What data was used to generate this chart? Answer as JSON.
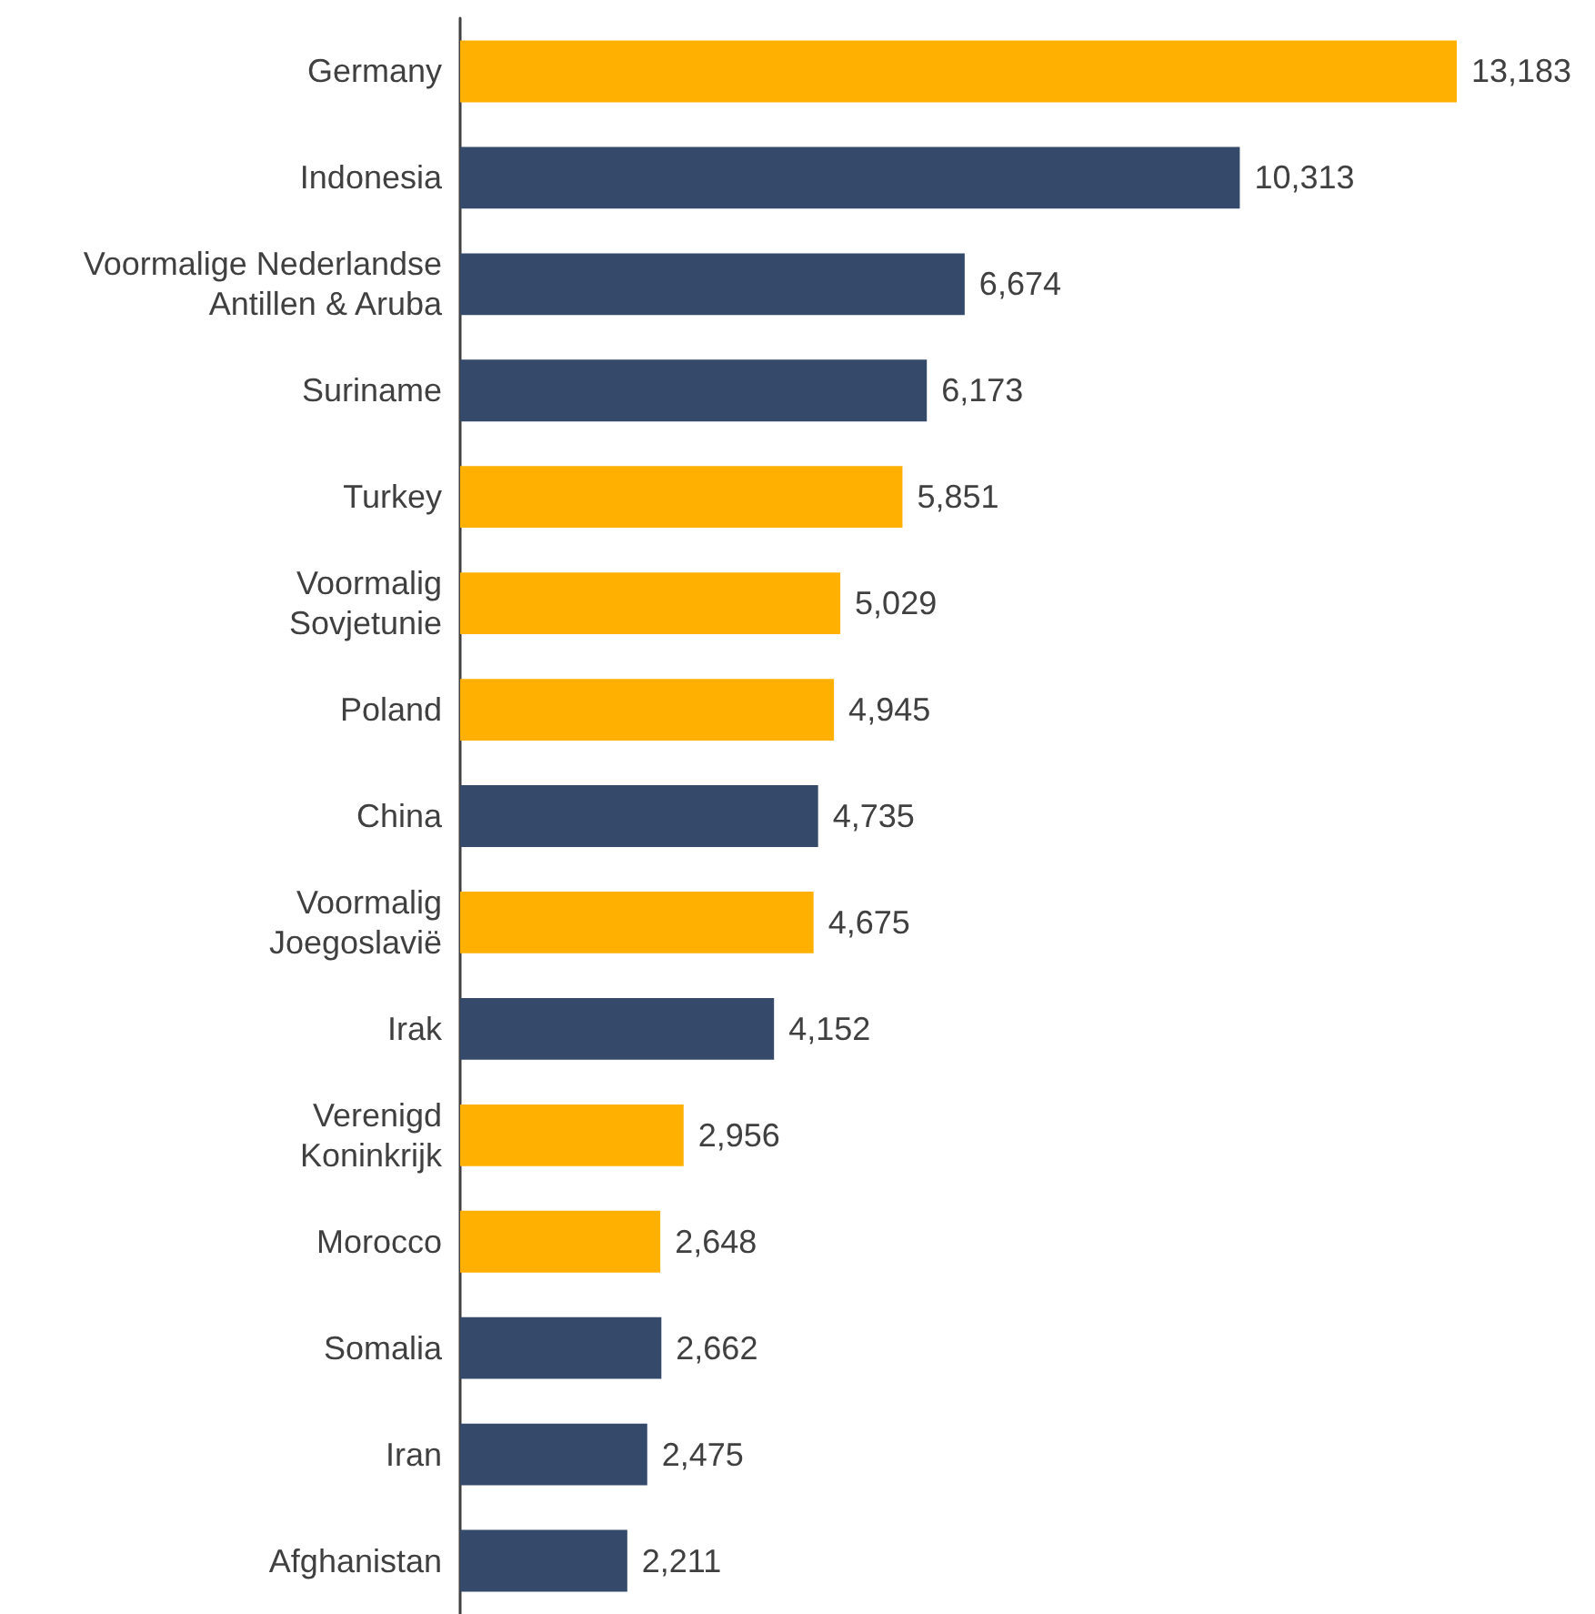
{
  "chart_data": {
    "type": "bar",
    "orientation": "horizontal",
    "value_labels": [
      "13,183",
      "10,313",
      "6,674",
      "6,173",
      "5,851",
      "5,029",
      "4,945",
      "4,735",
      "4,675",
      "4,152",
      "2,956",
      "2,648",
      "2,662",
      "2,475",
      "2,211"
    ],
    "categories": [
      "Germany",
      "Indonesia",
      "Voormalige Nederlandse\nAntillen & Aruba",
      "Suriname",
      "Turkey",
      "Voormalig\nSovjetunie",
      "Poland",
      "China",
      "Voormalig\nJoegoslavië",
      "Irak",
      "Verenigd\nKoninkrijk",
      "Morocco",
      "Somalia",
      "Iran",
      "Afghanistan"
    ],
    "values": [
      13183,
      10313,
      6674,
      6173,
      5851,
      5029,
      4945,
      4735,
      4675,
      4152,
      2956,
      2648,
      2662,
      2475,
      2211
    ],
    "colors": [
      "#ffb000",
      "#354a6b",
      "#354a6b",
      "#354a6b",
      "#ffb000",
      "#ffb000",
      "#ffb000",
      "#354a6b",
      "#ffb000",
      "#354a6b",
      "#ffb000",
      "#ffb000",
      "#354a6b",
      "#354a6b",
      "#354a6b"
    ]
  }
}
